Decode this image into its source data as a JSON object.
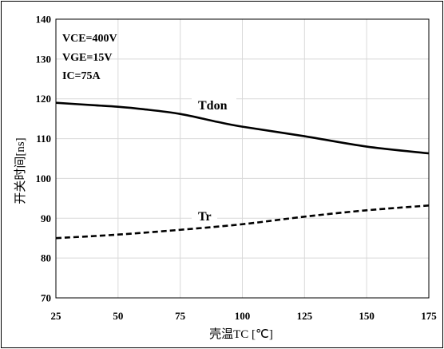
{
  "chart_data": {
    "type": "line",
    "xlabel": "壳温TC [℃]",
    "ylabel": "开关时间[ns]",
    "xlim": [
      25,
      175
    ],
    "ylim": [
      70,
      140
    ],
    "xticks": [
      25,
      50,
      75,
      100,
      125,
      150,
      175
    ],
    "yticks": [
      70,
      80,
      90,
      100,
      110,
      120,
      130,
      140
    ],
    "grid": true,
    "conditions": [
      "VCE=400V",
      "VGE=15V",
      "IC=75A"
    ],
    "series": [
      {
        "name": "Tdon",
        "style": "solid",
        "color": "#000000",
        "x": [
          25,
          40,
          50,
          60,
          75,
          90,
          100,
          125,
          150,
          175
        ],
        "y": [
          119,
          118.4,
          118,
          117.4,
          116.2,
          114.2,
          113,
          110.6,
          108,
          106.3
        ]
      },
      {
        "name": "Tr",
        "style": "dashed",
        "color": "#000000",
        "x": [
          25,
          50,
          75,
          100,
          125,
          150,
          175
        ],
        "y": [
          85,
          85.9,
          87.1,
          88.5,
          90.4,
          92,
          93.2
        ]
      }
    ]
  }
}
